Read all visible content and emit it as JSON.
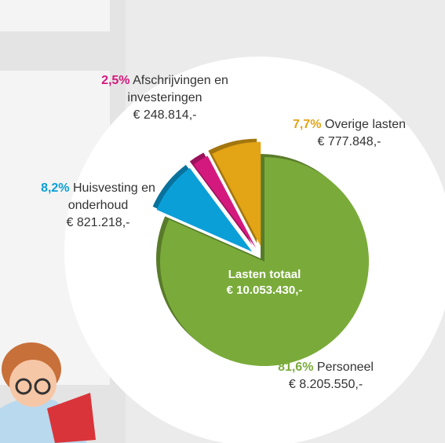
{
  "chart_data": {
    "type": "pie",
    "center_title": "Lasten totaal",
    "center_value": "€ 10.053.430,-",
    "categories": [
      "Personeel",
      "Huisvesting en onderhoud",
      "Afschrijvingen en investeringen",
      "Overige lasten"
    ],
    "values": [
      81.6,
      8.2,
      2.5,
      7.7
    ],
    "value_labels": [
      "81,6%",
      "8,2%",
      "2,5%",
      "7,7%"
    ],
    "amounts": [
      "€ 8.205.550,-",
      "€ 821.218,-",
      "€ 248.814,-",
      "€ 777.848,-"
    ],
    "colors": [
      "#7aab3a",
      "#0b9fd8",
      "#d4197e",
      "#e3a415"
    ]
  }
}
